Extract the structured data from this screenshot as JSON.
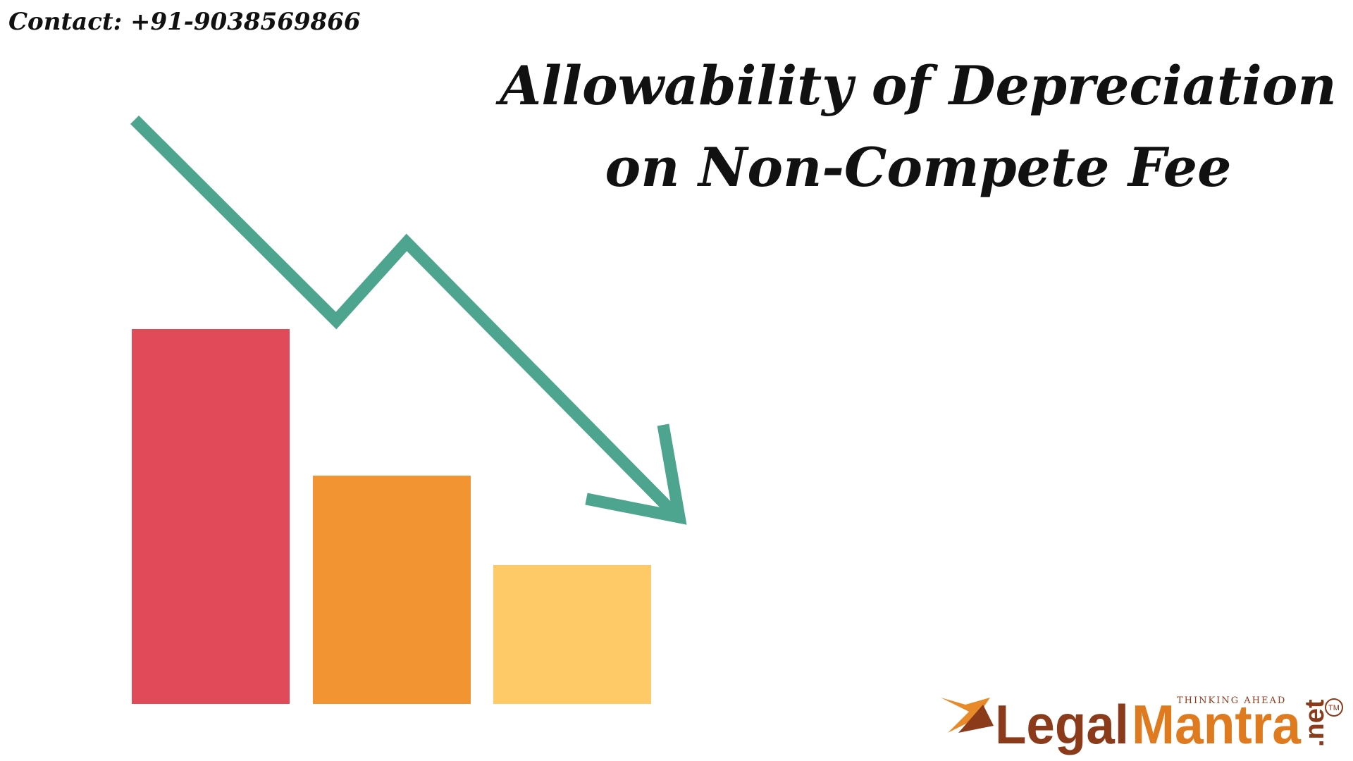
{
  "header": {
    "contact": "Contact: +91-9038569866"
  },
  "title": {
    "lines": [
      "Allowability of Depreciation",
      "on Non-Compete Fee"
    ]
  },
  "logo": {
    "legal": "Legal",
    "mantra": "Mantra",
    "net": ".net",
    "tagline": "THINKING AHEAD",
    "tm": "TM"
  }
}
